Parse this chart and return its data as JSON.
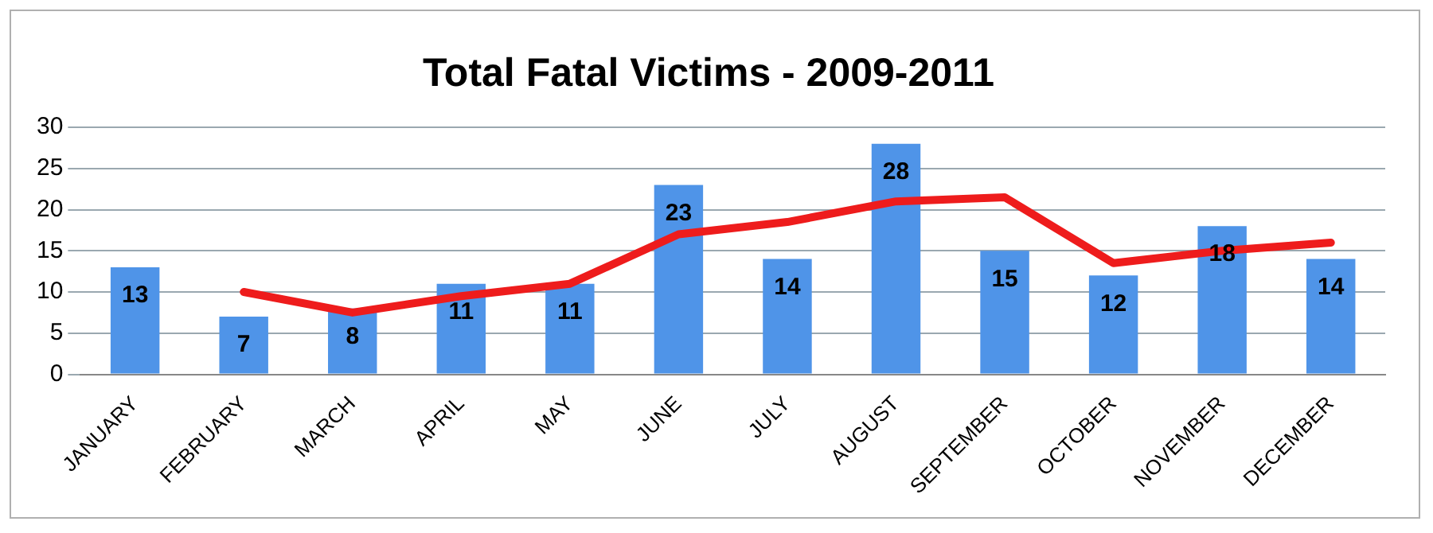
{
  "chart_data": {
    "type": "bar",
    "title": "Total Fatal Victims - 2009-2011",
    "categories": [
      "JANUARY",
      "FEBRUARY",
      "MARCH",
      "APRIL",
      "MAY",
      "JUNE",
      "JULY",
      "AUGUST",
      "SEPTEMBER",
      "OCTOBER",
      "NOVEMBER",
      "DECEMBER"
    ],
    "series": [
      {
        "color": "#4f94e8",
        "values": [
          13,
          7,
          8,
          11,
          11,
          23,
          14,
          28,
          15,
          12,
          18,
          14
        ],
        "data_labels": true
      },
      {
        "type": "line",
        "color": "#ee1c1c",
        "values": [
          null,
          10,
          7.5,
          9.5,
          11,
          17,
          18.5,
          21,
          21.5,
          13.5,
          15,
          16
        ],
        "marker": "none",
        "line_style": "solid"
      }
    ],
    "ylim": [
      0,
      30
    ],
    "yticks": [
      0,
      5,
      10,
      15,
      20,
      25,
      30
    ],
    "grid": "y",
    "legend": false
  }
}
